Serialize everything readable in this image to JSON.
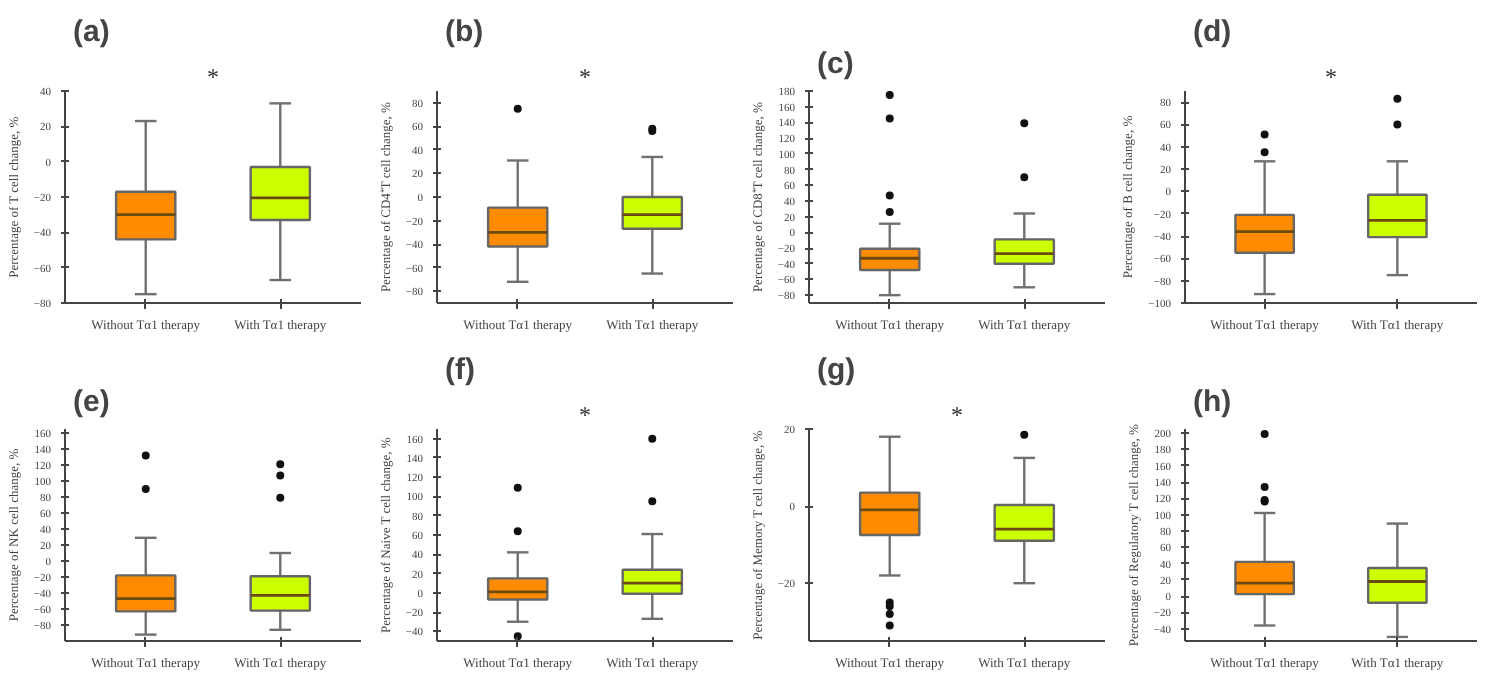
{
  "chart_data": [
    {
      "type": "box",
      "title": "(a)",
      "ylabel": "Percentage of T cell change, %",
      "categories": [
        "Without Tα1 therapy",
        "With Tα1 therapy"
      ],
      "colors": [
        "#ff8c00",
        "#ccff00"
      ],
      "ylim": [
        -80,
        40
      ],
      "yticks": [
        -80,
        -60,
        -40,
        -20,
        0,
        20,
        40
      ],
      "annotations": [
        "*"
      ],
      "boxes": [
        {
          "low": -75,
          "q1": -44,
          "median": -30,
          "q3": -17,
          "high": 23
        },
        {
          "low": -67,
          "q1": -33,
          "median": -20.5,
          "q3": -3,
          "high": 33
        }
      ]
    },
    {
      "type": "box",
      "title": "(b)",
      "ylabel": "Percentage of CD4⁺T cell change, %",
      "categories": [
        "Without Tα1 therapy",
        "With Tα1 therapy"
      ],
      "colors": [
        "#ff8c00",
        "#ccff00"
      ],
      "ylim": [
        -90,
        90
      ],
      "yticks": [
        -80,
        -60,
        -40,
        -20,
        0,
        20,
        40,
        60,
        80
      ],
      "annotations": [
        "*"
      ],
      "boxes": [
        {
          "low": -72,
          "q1": -42,
          "median": -30,
          "q3": -9,
          "high": 31,
          "outliers": [
            75
          ]
        },
        {
          "low": -65,
          "q1": -27,
          "median": -15,
          "q3": 0,
          "high": 34,
          "outliers": [
            58,
            56
          ]
        }
      ]
    },
    {
      "type": "box",
      "title": "(c)",
      "ylabel": "Percentage of CD8⁺T cell change, %",
      "categories": [
        "Without Tα1 therapy",
        "With Tα1 therapy"
      ],
      "colors": [
        "#ff8c00",
        "#ccff00"
      ],
      "ylim": [
        -90,
        180
      ],
      "yticks": [
        -80,
        -60,
        -40,
        -20,
        0,
        20,
        40,
        60,
        80,
        100,
        120,
        140,
        160,
        180
      ],
      "boxes": [
        {
          "low": -80,
          "q1": -48,
          "median": -33,
          "q3": -21,
          "high": 11,
          "outliers": [
            175,
            145,
            47,
            26
          ]
        },
        {
          "low": -70,
          "q1": -40,
          "median": -27,
          "q3": -9,
          "high": 24,
          "outliers": [
            139,
            70
          ]
        }
      ]
    },
    {
      "type": "box",
      "title": "(d)",
      "ylabel": "Percentage of B cell change, %",
      "categories": [
        "Without Tα1 therapy",
        "With Tα1 therapy"
      ],
      "colors": [
        "#ff8c00",
        "#ccff00"
      ],
      "ylim": [
        -100,
        90
      ],
      "yticks": [
        -100,
        -80,
        -60,
        -40,
        -20,
        0,
        20,
        40,
        60,
        80
      ],
      "annotations": [
        "*"
      ],
      "boxes": [
        {
          "low": -92,
          "q1": -55,
          "median": -36,
          "q3": -21,
          "high": 27,
          "outliers": [
            51,
            35
          ]
        },
        {
          "low": -75,
          "q1": -41,
          "median": -26,
          "q3": -3,
          "high": 27,
          "outliers": [
            83,
            60
          ]
        }
      ]
    },
    {
      "type": "box",
      "title": "(e)",
      "ylabel": "Percentage of NK cell change, %",
      "categories": [
        "Without Tα1 therapy",
        "With Tα1 therapy"
      ],
      "colors": [
        "#ff8c00",
        "#ccff00"
      ],
      "ylim": [
        -100,
        165
      ],
      "yticks": [
        -80,
        -60,
        -40,
        -20,
        0,
        20,
        40,
        60,
        80,
        100,
        120,
        140,
        160
      ],
      "boxes": [
        {
          "low": -92,
          "q1": -63,
          "median": -47,
          "q3": -18,
          "high": 29,
          "outliers": [
            132,
            90
          ]
        },
        {
          "low": -86,
          "q1": -62,
          "median": -43,
          "q3": -19,
          "high": 10,
          "outliers": [
            121,
            107,
            79
          ]
        }
      ]
    },
    {
      "type": "box",
      "title": "(f)",
      "ylabel": "Percentage of Naive T cell change, %",
      "categories": [
        "Without Tα1 therapy",
        "With Tα1 therapy"
      ],
      "colors": [
        "#ff8c00",
        "#ccff00"
      ],
      "ylim": [
        -50,
        170
      ],
      "yticks": [
        -40,
        -20,
        0,
        20,
        40,
        60,
        80,
        100,
        120,
        140,
        160
      ],
      "annotations": [
        "*"
      ],
      "boxes": [
        {
          "low": -30,
          "q1": -7,
          "median": 1,
          "q3": 15,
          "high": 42,
          "outliers": [
            109,
            64,
            -45
          ]
        },
        {
          "low": -27,
          "q1": -1,
          "median": 10,
          "q3": 24,
          "high": 61,
          "outliers": [
            160,
            95
          ]
        }
      ]
    },
    {
      "type": "box",
      "title": "(g)",
      "ylabel": "Percentage of Memory T cell change, %",
      "categories": [
        "Without Tα1 therapy",
        "With Tα1 therapy"
      ],
      "colors": [
        "#ff8c00",
        "#ccff00"
      ],
      "ylim": [
        -35,
        20
      ],
      "yticks": [
        -20,
        0,
        20
      ],
      "annotations": [
        "*"
      ],
      "boxes": [
        {
          "low": -18,
          "q1": -7.5,
          "median": -1,
          "q3": 3.5,
          "high": 18,
          "outliers": [
            -25,
            -26,
            -28,
            -31
          ]
        },
        {
          "low": -20,
          "q1": -9,
          "median": -6,
          "q3": 0.3,
          "high": 12.5,
          "outliers": [
            18.5
          ]
        }
      ]
    },
    {
      "type": "box",
      "title": "(h)",
      "ylabel": "Percentage of Regulatory T cell change, %",
      "categories": [
        "Without Tα1 therapy",
        "With Tα1 therapy"
      ],
      "colors": [
        "#ff8c00",
        "#ccff00"
      ],
      "ylim": [
        -55,
        205
      ],
      "yticks": [
        -40,
        -20,
        0,
        20,
        40,
        60,
        80,
        100,
        120,
        140,
        160,
        180,
        200
      ],
      "boxes": [
        {
          "low": -36,
          "q1": 2.5,
          "median": 16,
          "q3": 42,
          "high": 102,
          "outliers": [
            199,
            134,
            118,
            116
          ]
        },
        {
          "low": -50,
          "q1": -8,
          "median": 18,
          "q3": 34.5,
          "high": 89
        }
      ]
    }
  ]
}
